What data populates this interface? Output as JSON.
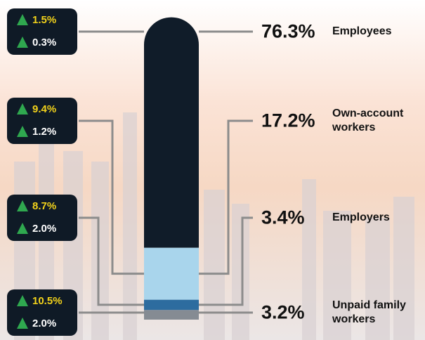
{
  "chart_data": {
    "type": "stacked-bar",
    "categories": [
      "Employees",
      "Own-account workers",
      "Employers",
      "Unpaid family workers"
    ],
    "values": [
      76.3,
      17.2,
      3.4,
      3.2
    ],
    "value_labels": [
      "76.3%",
      "17.2%",
      "3.4%",
      "3.2%"
    ],
    "colors": [
      "#101c29",
      "#a9d5ec",
      "#2d6c9f",
      "#858b93"
    ],
    "change_labels_1": [
      "1.5%",
      "9.4%",
      "8.7%",
      "10.5%"
    ],
    "change_labels_2": [
      "0.3%",
      "1.2%",
      "2.0%",
      "2.0%"
    ]
  }
}
